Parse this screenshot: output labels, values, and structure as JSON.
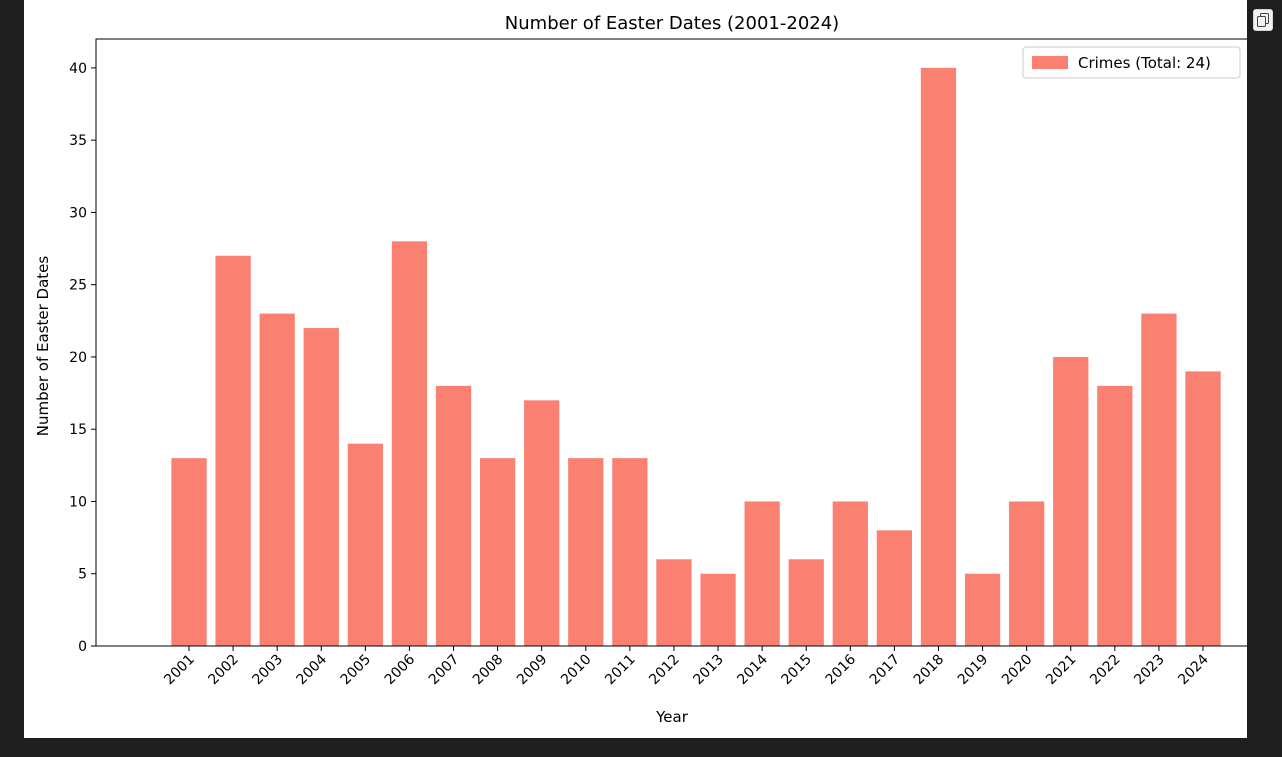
{
  "copy_button": {
    "icon": "copy-icon"
  },
  "chart_data": {
    "type": "bar",
    "title": "Number of Easter Dates (2001-2024)",
    "xlabel": "Year",
    "ylabel": "Number of Easter Dates",
    "categories": [
      "2001",
      "2002",
      "2003",
      "2004",
      "2005",
      "2006",
      "2007",
      "2008",
      "2009",
      "2010",
      "2011",
      "2012",
      "2013",
      "2014",
      "2015",
      "2016",
      "2017",
      "2018",
      "2019",
      "2020",
      "2021",
      "2022",
      "2023",
      "2024"
    ],
    "series": [
      {
        "name": "Crimes (Total: 24)",
        "color": "#fa8072",
        "values": [
          13,
          27,
          23,
          22,
          14,
          28,
          18,
          13,
          17,
          13,
          13,
          6,
          5,
          10,
          6,
          10,
          8,
          40,
          5,
          10,
          20,
          18,
          23,
          19
        ]
      }
    ],
    "ylim": [
      0,
      42
    ],
    "yticks": [
      0,
      5,
      10,
      15,
      20,
      25,
      30,
      35,
      40
    ],
    "legend_position": "top-right",
    "grid": false
  }
}
